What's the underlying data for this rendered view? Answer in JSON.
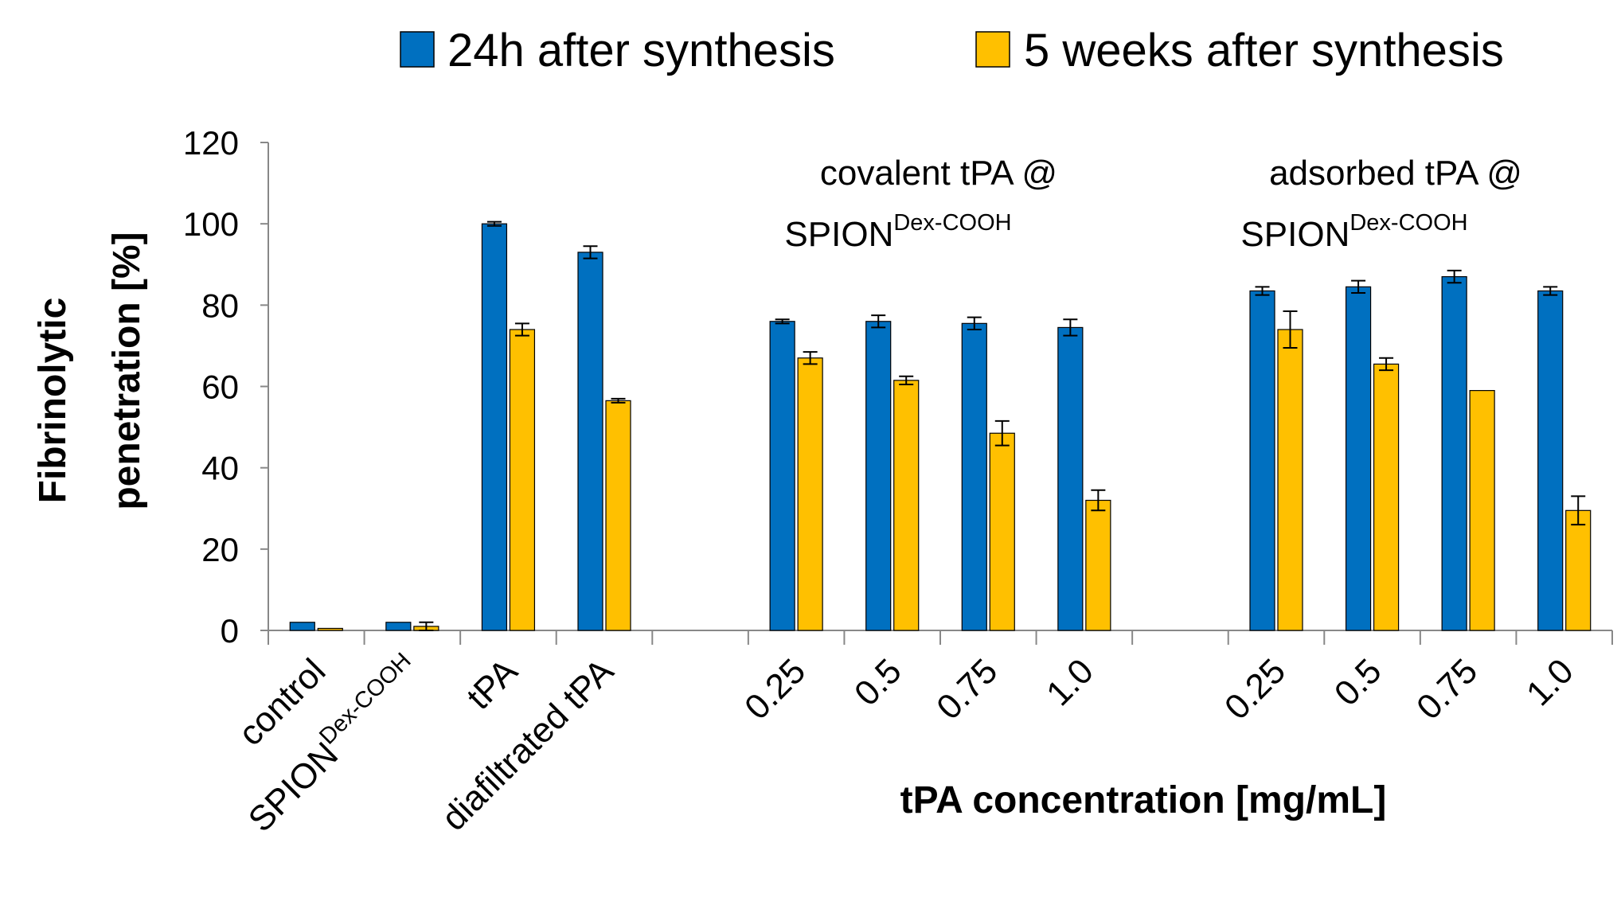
{
  "chart_data": {
    "type": "bar",
    "ylabel_line1": "Fibrinolytic",
    "ylabel_line2": "penetration [%]",
    "xlabel": "tPA concentration [mg/mL]",
    "ylim": [
      0,
      120
    ],
    "yticks": [
      "0",
      "20",
      "40",
      "60",
      "80",
      "100",
      "120"
    ],
    "grid": false,
    "legend_position": "top",
    "categories": [
      {
        "label": "control"
      },
      {
        "label": "SPION",
        "sup": "Dex-COOH"
      },
      {
        "label": "tPA"
      },
      {
        "label": "diafiltrated tPA"
      },
      {
        "label": ""
      },
      {
        "label": "0.25"
      },
      {
        "label": "0.5"
      },
      {
        "label": "0.75"
      },
      {
        "label": "1.0"
      },
      {
        "label": ""
      },
      {
        "label": "0.25"
      },
      {
        "label": "0.5"
      },
      {
        "label": "0.75"
      },
      {
        "label": "1.0"
      }
    ],
    "series": [
      {
        "name": "24h after synthesis",
        "color": "#0070C0",
        "values": [
          2,
          2,
          100,
          93,
          null,
          76,
          76,
          75.5,
          74.5,
          null,
          83.5,
          84.5,
          87,
          83.5
        ],
        "errors": [
          0,
          0,
          0.5,
          1.5,
          null,
          0.5,
          1.5,
          1.5,
          2,
          null,
          1,
          1.5,
          1.5,
          1
        ]
      },
      {
        "name": "5 weeks after synthesis",
        "color": "#FFC000",
        "values": [
          0.5,
          1,
          74,
          56.5,
          null,
          67,
          61.5,
          48.5,
          32,
          null,
          74,
          65.5,
          59,
          29.5
        ],
        "errors": [
          0,
          1,
          1.5,
          0.5,
          null,
          1.5,
          1,
          3,
          2.5,
          null,
          4.5,
          1.5,
          0,
          3.5
        ]
      }
    ],
    "group_annotations": [
      {
        "line1": "covalent tPA @",
        "line2_main": "SPION",
        "line2_sup": "Dex-COOH",
        "over": [
          5,
          8
        ]
      },
      {
        "line1": "adsorbed tPA @",
        "line2_main": "SPION",
        "line2_sup": "Dex-COOH",
        "over": [
          10,
          13
        ]
      }
    ]
  }
}
